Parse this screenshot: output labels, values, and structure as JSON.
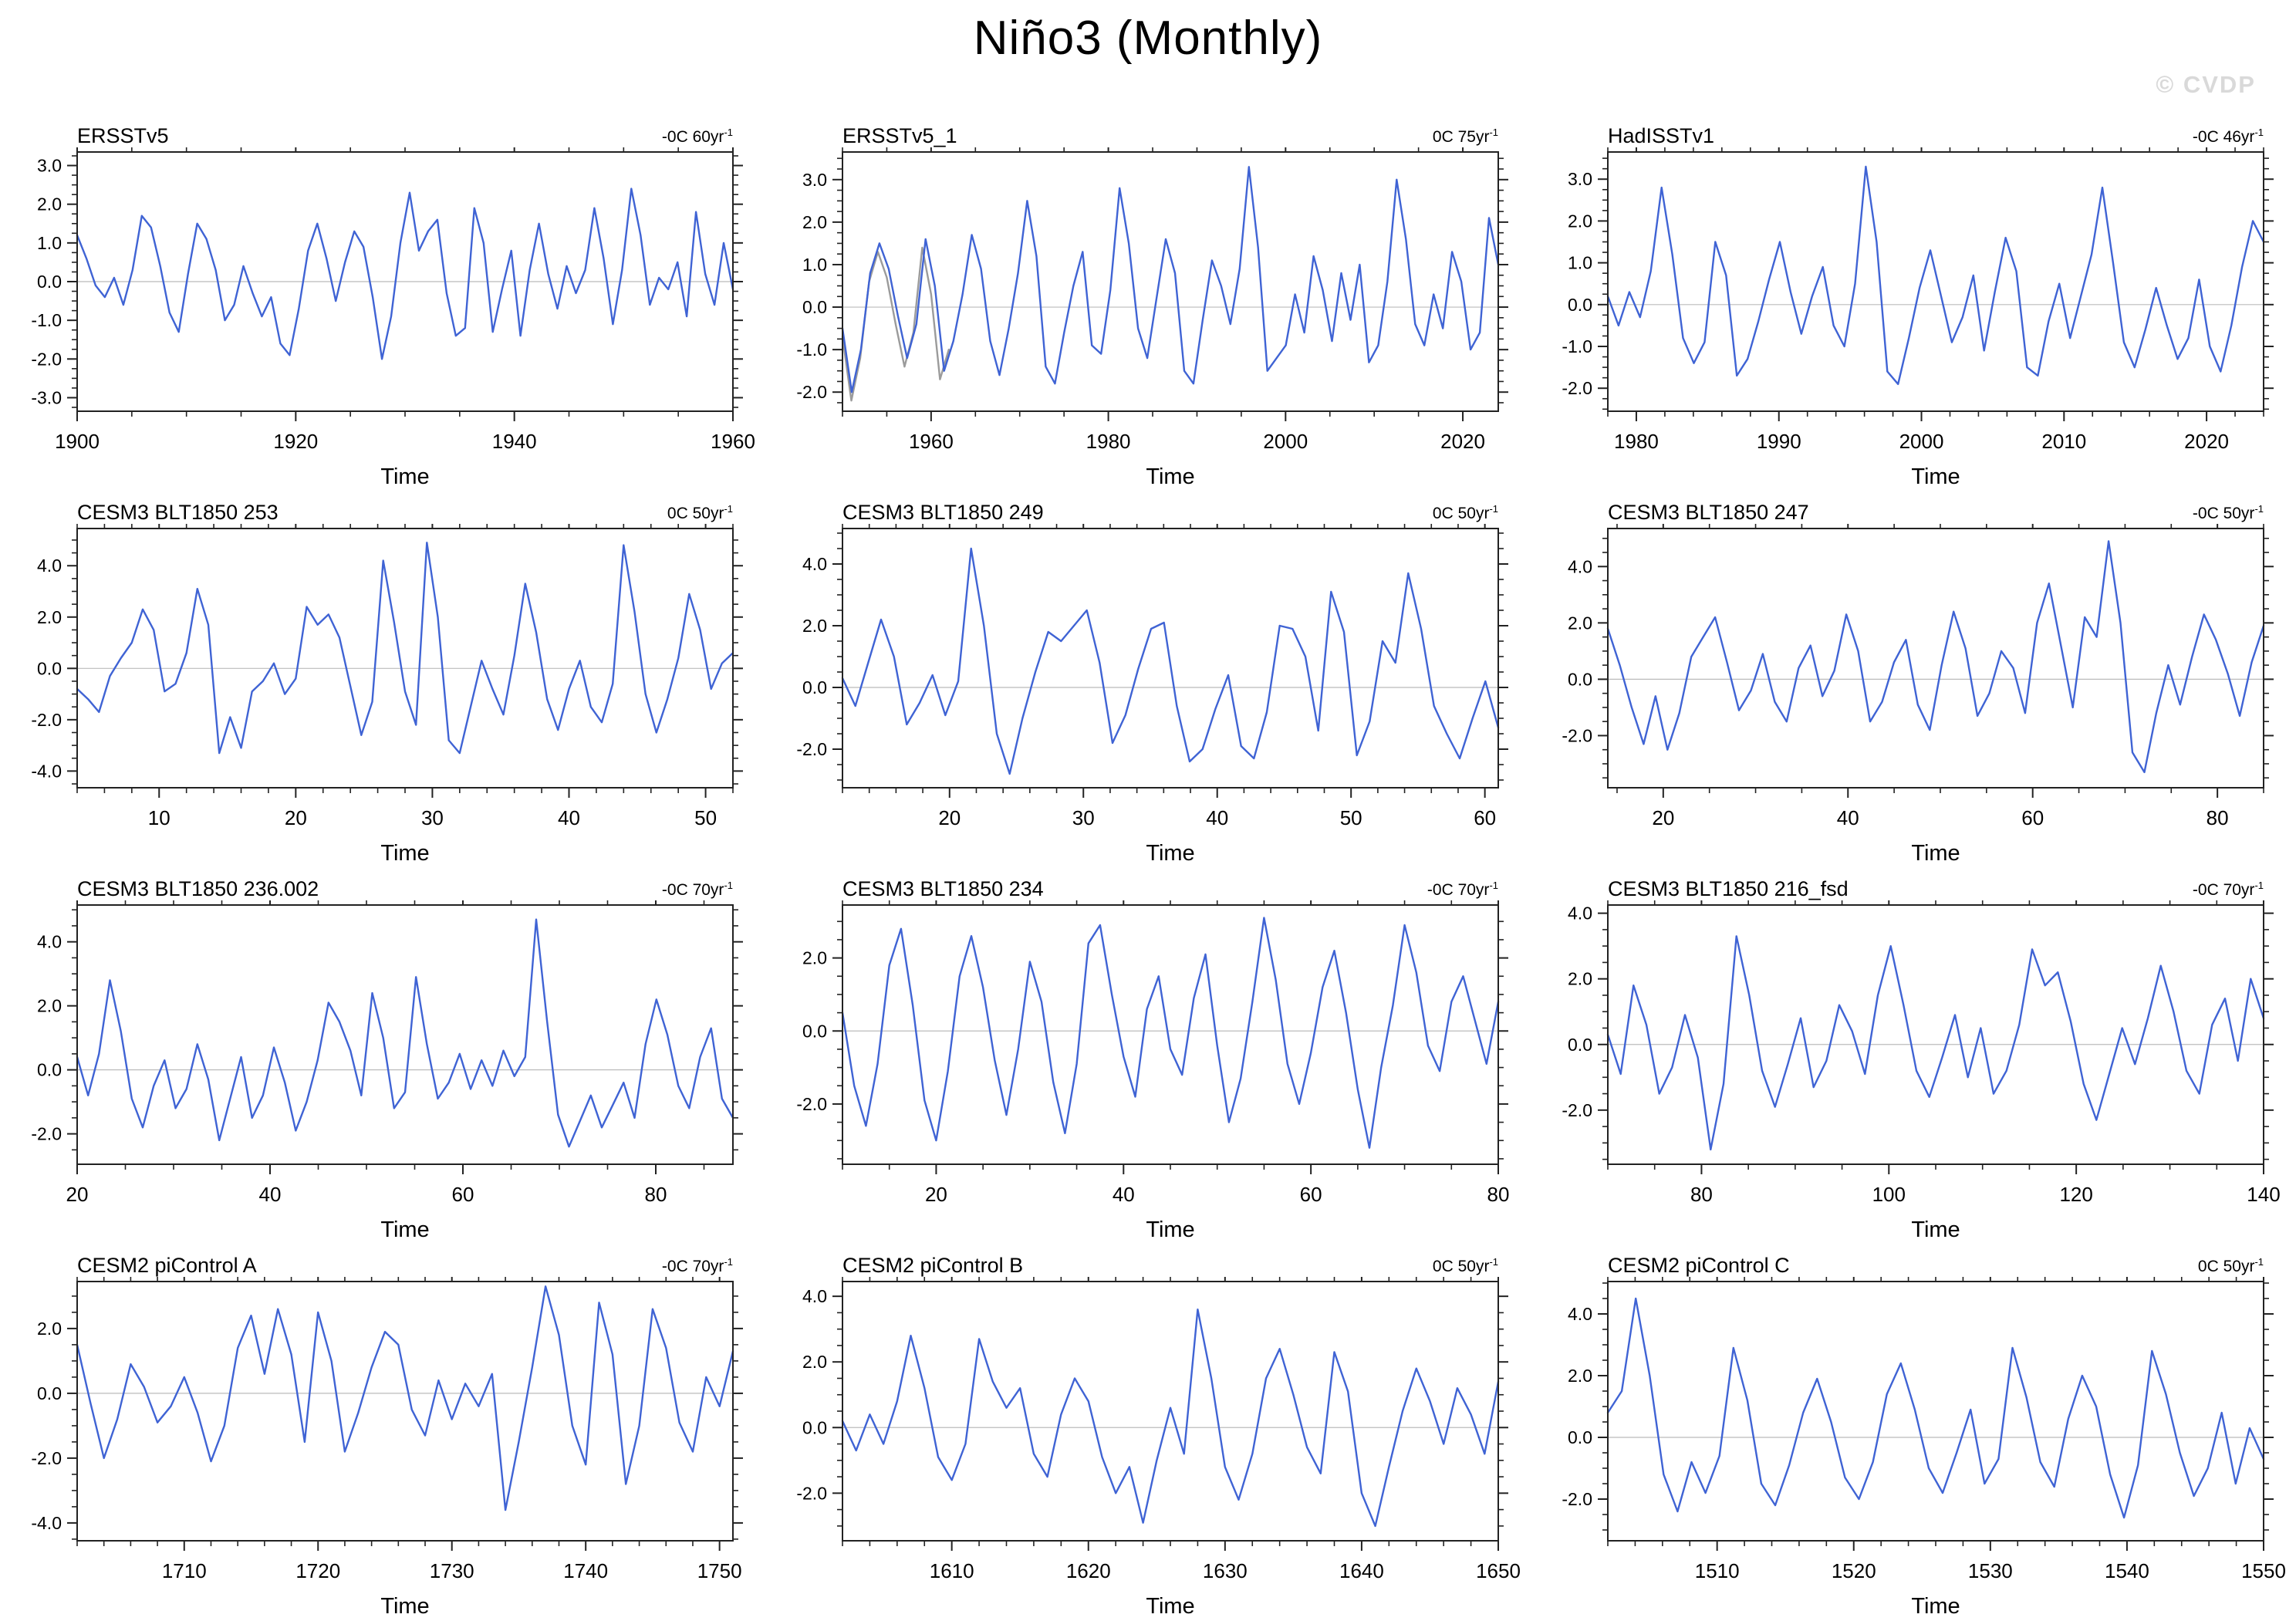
{
  "page_title": "Niño3 (Monthly)",
  "watermark": "© CVDP",
  "axis_title": "Time",
  "scale_exponent": "-1",
  "colors": {
    "line": "#3f63d4",
    "gray_line": "#9b9b9b",
    "zero_line": "#bbbbbb",
    "frame": "#222222",
    "watermark": "#d9d9d9"
  },
  "chart_data": [
    {
      "type": "line",
      "title": "ERSSTv5",
      "scale": "-0C 60yr",
      "xlabel": "Time",
      "xlim": [
        1900,
        1960
      ],
      "xtick_values": [
        1900,
        1920,
        1940,
        1960
      ],
      "xtick_labels": [
        "1900",
        "1920",
        "1940",
        "1960"
      ],
      "xminor_step": 5,
      "ylim": [
        -3.35,
        3.35
      ],
      "ytick_values": [
        3,
        2,
        1,
        0,
        -1,
        -2,
        -3
      ],
      "ytick_labels": [
        "3.0",
        "2.0",
        "1.0",
        "0.0",
        "-1.0",
        "-2.0",
        "-3.0"
      ],
      "yminor_step": 0.25,
      "series": [
        1.2,
        0.6,
        -0.1,
        -0.4,
        0.1,
        -0.6,
        0.3,
        1.7,
        1.4,
        0.4,
        -0.8,
        -1.3,
        0.2,
        1.5,
        1.1,
        0.3,
        -1.0,
        -0.6,
        0.4,
        -0.3,
        -0.9,
        -0.4,
        -1.6,
        -1.9,
        -0.7,
        0.8,
        1.5,
        0.6,
        -0.5,
        0.5,
        1.3,
        0.9,
        -0.4,
        -2.0,
        -0.9,
        1.0,
        2.3,
        0.8,
        1.3,
        1.6,
        -0.3,
        -1.4,
        -1.2,
        1.9,
        1.0,
        -1.3,
        -0.2,
        0.8,
        -1.4,
        0.3,
        1.5,
        0.2,
        -0.7,
        0.4,
        -0.3,
        0.3,
        1.9,
        0.6,
        -1.1,
        0.3,
        2.4,
        1.2,
        -0.6,
        0.1,
        -0.2,
        0.5,
        -0.9,
        1.8,
        0.2,
        -0.6,
        1.0,
        -0.2
      ]
    },
    {
      "type": "line",
      "title": "ERSSTv5_1",
      "scale": "0C 75yr",
      "xlabel": "Time",
      "xlim": [
        1950,
        2024
      ],
      "xtick_values": [
        1960,
        1980,
        2000,
        2020
      ],
      "xtick_labels": [
        "1960",
        "1980",
        "2000",
        "2020"
      ],
      "xminor_step": 5,
      "ylim": [
        -2.45,
        3.65
      ],
      "ytick_values": [
        3,
        2,
        1,
        0,
        -1,
        -2
      ],
      "ytick_labels": [
        "3.0",
        "2.0",
        "1.0",
        "0.0",
        "-1.0",
        "-2.0"
      ],
      "yminor_step": 0.25,
      "series": [
        -0.5,
        -2.0,
        -1.0,
        0.8,
        1.5,
        0.9,
        -0.2,
        -1.2,
        -0.4,
        1.6,
        0.5,
        -1.5,
        -0.8,
        0.3,
        1.7,
        0.9,
        -0.8,
        -1.6,
        -0.5,
        0.8,
        2.5,
        1.2,
        -1.4,
        -1.8,
        -0.6,
        0.5,
        1.3,
        -0.9,
        -1.1,
        0.4,
        2.8,
        1.5,
        -0.5,
        -1.2,
        0.2,
        1.6,
        0.8,
        -1.5,
        -1.8,
        -0.3,
        1.1,
        0.5,
        -0.4,
        0.9,
        3.3,
        1.4,
        -1.5,
        -1.2,
        -0.9,
        0.3,
        -0.6,
        1.2,
        0.4,
        -0.8,
        0.8,
        -0.3,
        1.0,
        -1.3,
        -0.9,
        0.6,
        3.0,
        1.6,
        -0.4,
        -0.9,
        0.3,
        -0.5,
        1.3,
        0.6,
        -1.0,
        -0.6,
        2.1,
        1.0
      ],
      "gray_series": {
        "x_start": 1950,
        "x_end": 1962,
        "values": [
          -0.7,
          -2.2,
          -1.2,
          0.6,
          1.3,
          0.7,
          -0.4,
          -1.4,
          -0.6,
          1.4,
          0.3,
          -1.7,
          -1.0
        ]
      }
    },
    {
      "type": "line",
      "title": "HadISSTv1",
      "scale": "-0C 46yr",
      "xlabel": "Time",
      "xlim": [
        1978,
        2024
      ],
      "xtick_values": [
        1980,
        1990,
        2000,
        2010,
        2020
      ],
      "xtick_labels": [
        "1980",
        "1990",
        "2000",
        "2010",
        "2020"
      ],
      "xminor_step": 2,
      "ylim": [
        -2.55,
        3.65
      ],
      "ytick_values": [
        3,
        2,
        1,
        0,
        -1,
        -2
      ],
      "ytick_labels": [
        "3.0",
        "2.0",
        "1.0",
        "0.0",
        "-1.0",
        "-2.0"
      ],
      "yminor_step": 0.25,
      "series": [
        0.2,
        -0.5,
        0.3,
        -0.3,
        0.8,
        2.8,
        1.2,
        -0.8,
        -1.4,
        -0.9,
        1.5,
        0.7,
        -1.7,
        -1.3,
        -0.4,
        0.6,
        1.5,
        0.3,
        -0.7,
        0.2,
        0.9,
        -0.5,
        -1.0,
        0.5,
        3.3,
        1.5,
        -1.6,
        -1.9,
        -0.8,
        0.4,
        1.3,
        0.2,
        -0.9,
        -0.3,
        0.7,
        -1.1,
        0.3,
        1.6,
        0.8,
        -1.5,
        -1.7,
        -0.4,
        0.5,
        -0.8,
        0.2,
        1.2,
        2.8,
        1.0,
        -0.9,
        -1.5,
        -0.6,
        0.4,
        -0.5,
        -1.3,
        -0.8,
        0.6,
        -1.0,
        -1.6,
        -0.5,
        0.9,
        2.0,
        1.5
      ]
    },
    {
      "type": "line",
      "title": "CESM3 BLT1850 253",
      "scale": "0C 50yr",
      "xlabel": "Time",
      "xlim": [
        4,
        52
      ],
      "xtick_values": [
        10,
        20,
        30,
        40,
        50
      ],
      "xtick_labels": [
        "10",
        "20",
        "30",
        "40",
        "50"
      ],
      "xminor_step": 2,
      "ylim": [
        -4.65,
        5.45
      ],
      "ytick_values": [
        4,
        2,
        0,
        -2,
        -4
      ],
      "ytick_labels": [
        "4.0",
        "2.0",
        "0.0",
        "-2.0",
        "-4.0"
      ],
      "yminor_step": 0.5,
      "series": [
        -0.8,
        -1.2,
        -1.7,
        -0.3,
        0.4,
        1.0,
        2.3,
        1.5,
        -0.9,
        -0.6,
        0.6,
        3.1,
        1.7,
        -3.3,
        -1.9,
        -3.1,
        -0.9,
        -0.5,
        0.2,
        -1.0,
        -0.4,
        2.4,
        1.7,
        2.1,
        1.2,
        -0.7,
        -2.6,
        -1.3,
        4.2,
        1.8,
        -0.9,
        -2.2,
        4.9,
        2.0,
        -2.8,
        -3.3,
        -1.5,
        0.3,
        -0.8,
        -1.8,
        0.5,
        3.3,
        1.4,
        -1.2,
        -2.4,
        -0.8,
        0.3,
        -1.5,
        -2.1,
        -0.6,
        4.8,
        2.2,
        -1.0,
        -2.5,
        -1.2,
        0.4,
        2.9,
        1.5,
        -0.8,
        0.2,
        0.6
      ]
    },
    {
      "type": "line",
      "title": "CESM3 BLT1850 249",
      "scale": "0C 50yr",
      "xlabel": "Time",
      "xlim": [
        12,
        61
      ],
      "xtick_values": [
        20,
        30,
        40,
        50,
        60
      ],
      "xtick_labels": [
        "20",
        "30",
        "40",
        "50",
        "60"
      ],
      "xminor_step": 2,
      "ylim": [
        -3.25,
        5.15
      ],
      "ytick_values": [
        4,
        2,
        0,
        -2
      ],
      "ytick_labels": [
        "4.0",
        "2.0",
        "0.0",
        "-2.0"
      ],
      "yminor_step": 0.5,
      "series": [
        0.3,
        -0.6,
        0.8,
        2.2,
        1.0,
        -1.2,
        -0.5,
        0.4,
        -0.9,
        0.2,
        4.5,
        2.0,
        -1.5,
        -2.8,
        -1.0,
        0.5,
        1.8,
        1.5,
        2.0,
        2.5,
        0.8,
        -1.8,
        -0.9,
        0.6,
        1.9,
        2.1,
        -0.6,
        -2.4,
        -2.0,
        -0.7,
        0.4,
        -1.9,
        -2.3,
        -0.8,
        2.0,
        1.9,
        1.0,
        -1.4,
        3.1,
        1.8,
        -2.2,
        -1.1,
        1.5,
        0.8,
        3.7,
        1.9,
        -0.6,
        -1.5,
        -2.3,
        -1.0,
        0.2,
        -1.3
      ]
    },
    {
      "type": "line",
      "title": "CESM3 BLT1850 247",
      "scale": "-0C 50yr",
      "xlabel": "Time",
      "xlim": [
        14,
        85
      ],
      "xtick_values": [
        20,
        40,
        60,
        80
      ],
      "xtick_labels": [
        "20",
        "40",
        "60",
        "80"
      ],
      "xminor_step": 5,
      "ylim": [
        -3.85,
        5.35
      ],
      "ytick_values": [
        4,
        2,
        0,
        -2
      ],
      "ytick_labels": [
        "4.0",
        "2.0",
        "0.0",
        "-2.0"
      ],
      "yminor_step": 0.5,
      "series": [
        1.8,
        0.5,
        -1.0,
        -2.3,
        -0.6,
        -2.5,
        -1.2,
        0.8,
        1.5,
        2.2,
        0.6,
        -1.1,
        -0.4,
        0.9,
        -0.8,
        -1.5,
        0.4,
        1.2,
        -0.6,
        0.3,
        2.3,
        1.0,
        -1.5,
        -0.8,
        0.6,
        1.4,
        -0.9,
        -1.8,
        0.5,
        2.4,
        1.1,
        -1.3,
        -0.5,
        1.0,
        0.4,
        -1.2,
        2.0,
        3.4,
        1.2,
        -1.0,
        2.2,
        1.5,
        4.9,
        2.0,
        -2.6,
        -3.3,
        -1.2,
        0.5,
        -0.9,
        0.8,
        2.3,
        1.4,
        0.2,
        -1.3,
        0.6,
        1.9
      ]
    },
    {
      "type": "line",
      "title": "CESM3 BLT1850 236.002",
      "scale": "-0C 70yr",
      "xlabel": "Time",
      "xlim": [
        20,
        88
      ],
      "xtick_values": [
        20,
        40,
        60,
        80
      ],
      "xtick_labels": [
        "20",
        "40",
        "60",
        "80"
      ],
      "xminor_step": 5,
      "ylim": [
        -2.95,
        5.15
      ],
      "ytick_values": [
        4,
        2,
        0,
        -2
      ],
      "ytick_labels": [
        "4.0",
        "2.0",
        "0.0",
        "-2.0"
      ],
      "yminor_step": 0.5,
      "series": [
        0.4,
        -0.8,
        0.5,
        2.8,
        1.2,
        -0.9,
        -1.8,
        -0.5,
        0.3,
        -1.2,
        -0.6,
        0.8,
        -0.3,
        -2.2,
        -0.9,
        0.4,
        -1.5,
        -0.8,
        0.7,
        -0.4,
        -1.9,
        -1.0,
        0.3,
        2.1,
        1.5,
        0.6,
        -0.8,
        2.4,
        1.0,
        -1.2,
        -0.7,
        2.9,
        0.8,
        -0.9,
        -0.4,
        0.5,
        -0.6,
        0.3,
        -0.5,
        0.6,
        -0.2,
        0.4,
        4.7,
        1.5,
        -1.4,
        -2.4,
        -1.6,
        -0.8,
        -1.8,
        -1.1,
        -0.4,
        -1.5,
        0.8,
        2.2,
        1.1,
        -0.5,
        -1.2,
        0.4,
        1.3,
        -0.9,
        -1.5
      ]
    },
    {
      "type": "line",
      "title": "CESM3 BLT1850 234",
      "scale": "-0C 70yr",
      "xlabel": "Time",
      "xlim": [
        10,
        80
      ],
      "xtick_values": [
        20,
        40,
        60,
        80
      ],
      "xtick_labels": [
        "20",
        "40",
        "60",
        "80"
      ],
      "xminor_step": 5,
      "ylim": [
        -3.65,
        3.45
      ],
      "ytick_values": [
        2,
        0,
        -2
      ],
      "ytick_labels": [
        "2.0",
        "0.0",
        "-2.0"
      ],
      "yminor_step": 0.5,
      "series": [
        0.5,
        -1.5,
        -2.6,
        -0.9,
        1.8,
        2.8,
        0.7,
        -1.9,
        -3.0,
        -1.1,
        1.5,
        2.6,
        1.2,
        -0.8,
        -2.3,
        -0.5,
        1.9,
        0.8,
        -1.4,
        -2.8,
        -0.9,
        2.4,
        2.9,
        1.0,
        -0.7,
        -1.8,
        0.6,
        1.5,
        -0.5,
        -1.2,
        0.9,
        2.1,
        -0.4,
        -2.5,
        -1.3,
        0.8,
        3.1,
        1.4,
        -0.9,
        -2.0,
        -0.6,
        1.2,
        2.2,
        0.5,
        -1.6,
        -3.2,
        -1.0,
        0.7,
        2.9,
        1.6,
        -0.4,
        -1.1,
        0.8,
        1.5,
        0.3,
        -0.9,
        0.8
      ]
    },
    {
      "type": "line",
      "title": "CESM3 BLT1850 216_fsd",
      "scale": "-0C 70yr",
      "xlabel": "Time",
      "xlim": [
        70,
        140
      ],
      "xtick_values": [
        80,
        100,
        120,
        140
      ],
      "xtick_labels": [
        "80",
        "100",
        "120",
        "140"
      ],
      "xminor_step": 5,
      "ylim": [
        -3.65,
        4.25
      ],
      "ytick_values": [
        4,
        2,
        0,
        -2
      ],
      "ytick_labels": [
        "4.0",
        "2.0",
        "0.0",
        "-2.0"
      ],
      "yminor_step": 0.5,
      "series": [
        0.3,
        -0.9,
        1.8,
        0.6,
        -1.5,
        -0.7,
        0.9,
        -0.4,
        -3.2,
        -1.2,
        3.3,
        1.5,
        -0.8,
        -1.9,
        -0.6,
        0.8,
        -1.3,
        -0.5,
        1.2,
        0.4,
        -0.9,
        1.5,
        3.0,
        1.2,
        -0.8,
        -1.6,
        -0.4,
        0.9,
        -1.0,
        0.5,
        -1.5,
        -0.8,
        0.6,
        2.9,
        1.8,
        2.2,
        0.7,
        -1.2,
        -2.3,
        -0.9,
        0.5,
        -0.6,
        0.8,
        2.4,
        1.0,
        -0.8,
        -1.5,
        0.6,
        1.4,
        -0.5,
        2.0,
        0.8
      ]
    },
    {
      "type": "line",
      "title": "CESM2 piControl A",
      "scale": "-0C 70yr",
      "xlabel": "Time",
      "xlim": [
        1702,
        1751
      ],
      "xtick_values": [
        1710,
        1720,
        1730,
        1740,
        1750
      ],
      "xtick_labels": [
        "1710",
        "1720",
        "1730",
        "1740",
        "1750"
      ],
      "xminor_step": 2,
      "ylim": [
        -4.55,
        3.45
      ],
      "ytick_values": [
        2,
        0,
        -2,
        -4
      ],
      "ytick_labels": [
        "2.0",
        "0.0",
        "-2.0",
        "-4.0"
      ],
      "yminor_step": 0.5,
      "series": [
        1.5,
        -0.3,
        -2.0,
        -0.8,
        0.9,
        0.2,
        -0.9,
        -0.4,
        0.5,
        -0.6,
        -2.1,
        -1.0,
        1.4,
        2.4,
        0.6,
        2.6,
        1.2,
        -1.5,
        2.5,
        1.0,
        -1.8,
        -0.6,
        0.8,
        1.9,
        1.5,
        -0.5,
        -1.3,
        0.4,
        -0.8,
        0.3,
        -0.4,
        0.6,
        -3.6,
        -1.5,
        0.8,
        3.3,
        1.8,
        -1.0,
        -2.2,
        2.8,
        1.2,
        -2.8,
        -1.0,
        2.6,
        1.4,
        -0.9,
        -1.8,
        0.5,
        -0.4,
        1.3
      ]
    },
    {
      "type": "line",
      "title": "CESM2 piControl B",
      "scale": "0C 50yr",
      "xlabel": "Time",
      "xlim": [
        1602,
        1650
      ],
      "xtick_values": [
        1610,
        1620,
        1630,
        1640,
        1650
      ],
      "xtick_labels": [
        "1610",
        "1620",
        "1630",
        "1640",
        "1650"
      ],
      "xminor_step": 2,
      "ylim": [
        -3.45,
        4.45
      ],
      "ytick_values": [
        4,
        2,
        0,
        -2
      ],
      "ytick_labels": [
        "4.0",
        "2.0",
        "0.0",
        "-2.0"
      ],
      "yminor_step": 0.5,
      "series": [
        0.2,
        -0.7,
        0.4,
        -0.5,
        0.8,
        2.8,
        1.2,
        -0.9,
        -1.6,
        -0.5,
        2.7,
        1.4,
        0.6,
        1.2,
        -0.8,
        -1.5,
        0.4,
        1.5,
        0.8,
        -0.9,
        -2.0,
        -1.2,
        -2.9,
        -1.0,
        0.6,
        -0.8,
        3.6,
        1.5,
        -1.2,
        -2.2,
        -0.8,
        1.5,
        2.4,
        1.0,
        -0.6,
        -1.4,
        2.3,
        1.1,
        -2.0,
        -3.0,
        -1.2,
        0.5,
        1.8,
        0.8,
        -0.5,
        1.2,
        0.4,
        -0.8,
        1.4
      ]
    },
    {
      "type": "line",
      "title": "CESM2 piControl C",
      "scale": "0C 50yr",
      "xlabel": "Time",
      "xlim": [
        1502,
        1550
      ],
      "xtick_values": [
        1510,
        1520,
        1530,
        1540,
        1550
      ],
      "xtick_labels": [
        "1510",
        "1520",
        "1530",
        "1540",
        "1550"
      ],
      "xminor_step": 2,
      "ylim": [
        -3.35,
        5.05
      ],
      "ytick_values": [
        4,
        2,
        0,
        -2
      ],
      "ytick_labels": [
        "4.0",
        "2.0",
        "0.0",
        "-2.0"
      ],
      "yminor_step": 0.5,
      "series": [
        0.8,
        1.5,
        4.5,
        2.0,
        -1.2,
        -2.4,
        -0.8,
        -1.8,
        -0.6,
        2.9,
        1.2,
        -1.5,
        -2.2,
        -0.9,
        0.8,
        1.9,
        0.5,
        -1.3,
        -2.0,
        -0.8,
        1.4,
        2.4,
        0.9,
        -1.0,
        -1.8,
        -0.5,
        0.9,
        -1.5,
        -0.7,
        2.9,
        1.3,
        -0.8,
        -1.6,
        0.6,
        2.0,
        1.0,
        -1.2,
        -2.6,
        -0.9,
        2.8,
        1.4,
        -0.5,
        -1.9,
        -1.0,
        0.8,
        -1.5,
        0.3,
        -0.7
      ]
    }
  ]
}
